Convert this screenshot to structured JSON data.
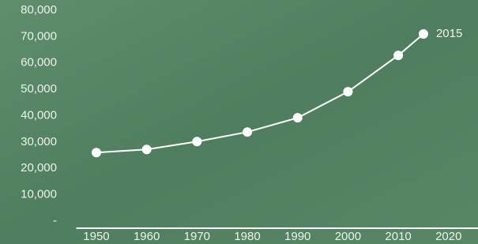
{
  "chart_data": {
    "type": "line",
    "x": [
      1950,
      1960,
      1970,
      1980,
      1990,
      2000,
      2010,
      2015
    ],
    "series": [
      {
        "color": "#ffffff",
        "values": [
          26000,
          27200,
          30200,
          33800,
          39200,
          49100,
          62900,
          71000
        ]
      }
    ],
    "xlim": [
      1946,
      2026
    ],
    "xticks": [
      1950,
      1960,
      1970,
      1980,
      1990,
      2000,
      2010,
      2020
    ],
    "ylim": [
      0,
      80000
    ],
    "yticks": [
      {
        "value": 0,
        "label": "-"
      },
      {
        "value": 10000,
        "label": "10,000"
      },
      {
        "value": 20000,
        "label": "20,000"
      },
      {
        "value": 30000,
        "label": "30,000"
      },
      {
        "value": 40000,
        "label": "40,000"
      },
      {
        "value": 50000,
        "label": "50,000"
      },
      {
        "value": 60000,
        "label": "60,000"
      },
      {
        "value": 70000,
        "label": "70,000"
      },
      {
        "value": 80000,
        "label": "80,000"
      }
    ],
    "grid": false
  }
}
